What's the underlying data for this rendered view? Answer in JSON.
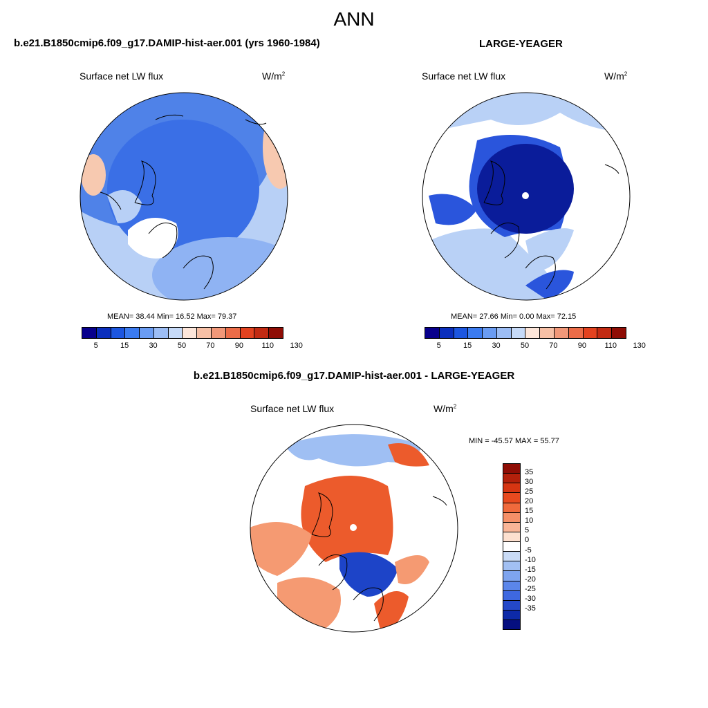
{
  "figure": {
    "title": "ANN",
    "panel_left": {
      "case_name": "b.e21.B1850cmip6.f09_g17.DAMIP-hist-aer.001 (yrs 1960-1984)",
      "variable": "Surface net LW flux",
      "units": "W/m",
      "units_exp": "2",
      "stats": "MEAN=  38.44  Min=  16.52  Max=  79.37",
      "colorbar_labels": [
        "5",
        "15",
        "30",
        "50",
        "70",
        "90",
        "110",
        "130"
      ],
      "colors": [
        "#08008c",
        "#0b2fbd",
        "#1c56e0",
        "#3b7bf0",
        "#6a9cf3",
        "#9cbdf5",
        "#c6daf8",
        "#fde6da",
        "#f7c0a6",
        "#f29879",
        "#ec6c48",
        "#e3421f",
        "#c22a12",
        "#8f0d05"
      ]
    },
    "panel_right": {
      "case_name": "LARGE-YEAGER",
      "variable": "Surface net LW flux",
      "units": "W/m",
      "units_exp": "2",
      "stats": "MEAN=  27.66  Min=   0.00  Max=  72.15",
      "colorbar_labels": [
        "5",
        "15",
        "30",
        "50",
        "70",
        "90",
        "110",
        "130"
      ],
      "colors": [
        "#08008c",
        "#0b2fbd",
        "#1c56e0",
        "#3b7bf0",
        "#6a9cf3",
        "#9cbdf5",
        "#c6daf8",
        "#fde6da",
        "#f7c0a6",
        "#f29879",
        "#ec6c48",
        "#e3421f",
        "#c22a12",
        "#8f0d05"
      ]
    },
    "panel_diff": {
      "case_name": "b.e21.B1850cmip6.f09_g17.DAMIP-hist-aer.001 - LARGE-YEAGER",
      "variable": "Surface net LW flux",
      "units": "W/m",
      "units_exp": "2",
      "stats": "MIN = -45.57 MAX =  55.77",
      "colorbar_labels": [
        "35",
        "30",
        "25",
        "20",
        "15",
        "10",
        "5",
        "0",
        "-5",
        "-10",
        "-15",
        "-20",
        "-25",
        "-30",
        "-35"
      ],
      "colors": [
        "#8f0d05",
        "#b3200b",
        "#d63512",
        "#e84a1f",
        "#f06a3c",
        "#f59068",
        "#f9b597",
        "#fde0cf",
        "#ffffff",
        "#c9dbf6",
        "#a2c0f3",
        "#7ea4ef",
        "#5b86ea",
        "#3e68e0",
        "#2448c8",
        "#0d2aa8",
        "#050f80"
      ]
    },
    "map_colors": {
      "ocean_left": "#4f82e8",
      "arctic_left": "#3a6fe6",
      "margin_left": "#8fb3f3",
      "pale_left": "#b8d0f6",
      "warm_left": "#f7c9b0",
      "arctic_right": "#0a1c9a",
      "ring_right": "#2a55dc",
      "pale_right": "#b9d1f6",
      "diff_red": "#ec5b2c",
      "diff_orange": "#f59a72",
      "diff_blue": "#1d44c8",
      "diff_pale": "#9fbff3",
      "land": "#ffffff"
    }
  }
}
